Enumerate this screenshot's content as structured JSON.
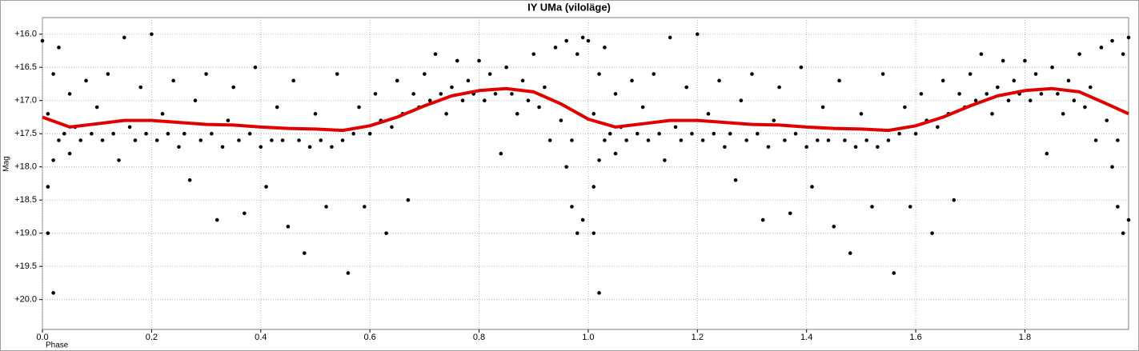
{
  "chart_data": {
    "type": "scatter",
    "title": "IY UMa (viloläge)",
    "x_label": "Phase",
    "y_label": "Mag",
    "xlim": [
      0,
      1.99
    ],
    "ylim": [
      15.75,
      20.45
    ],
    "y_inverted": true,
    "grid": true,
    "xticks": [
      {
        "value": 0,
        "label": "0.0"
      },
      0.2,
      0.4,
      0.6,
      0.8,
      {
        "value": 1,
        "label": "1.0"
      },
      1.2,
      1.4,
      1.6,
      1.8
    ],
    "yticks": [
      {
        "value": 16,
        "label": "+16.0"
      },
      {
        "value": 16.5,
        "label": "+16.5"
      },
      {
        "value": 17,
        "label": "+17.0"
      },
      {
        "value": 17.5,
        "label": "+17.5"
      },
      {
        "value": 18,
        "label": "+18.0"
      },
      {
        "value": 18.5,
        "label": "+18.5"
      },
      {
        "value": 19,
        "label": "+19.0"
      },
      {
        "value": 19.5,
        "label": "+19.5"
      },
      {
        "value": 20,
        "label": "+20.0"
      }
    ],
    "points": {
      "color": "#000000",
      "x": [
        0.0,
        0.01,
        0.01,
        0.01,
        0.02,
        0.02,
        0.02,
        0.03,
        0.03,
        0.04,
        0.05,
        0.05,
        0.06,
        0.07,
        0.08,
        0.09,
        0.1,
        0.11,
        0.12,
        0.13,
        0.14,
        0.15,
        0.16,
        0.17,
        0.18,
        0.19,
        0.2,
        0.21,
        0.22,
        0.23,
        0.24,
        0.25,
        0.26,
        0.27,
        0.28,
        0.29,
        0.3,
        0.31,
        0.32,
        0.33,
        0.34,
        0.35,
        0.36,
        0.37,
        0.38,
        0.39,
        0.4,
        0.41,
        0.42,
        0.43,
        0.44,
        0.45,
        0.46,
        0.47,
        0.48,
        0.49,
        0.5,
        0.51,
        0.52,
        0.53,
        0.54,
        0.55,
        0.56,
        0.57,
        0.58,
        0.59,
        0.6,
        0.61,
        0.62,
        0.63,
        0.64,
        0.65,
        0.66,
        0.67,
        0.68,
        0.69,
        0.7,
        0.71,
        0.72,
        0.73,
        0.74,
        0.75,
        0.76,
        0.77,
        0.78,
        0.79,
        0.8,
        0.81,
        0.82,
        0.83,
        0.84,
        0.85,
        0.86,
        0.87,
        0.88,
        0.89,
        0.9,
        0.91,
        0.92,
        0.93,
        0.94,
        0.95,
        0.96,
        0.96,
        0.97,
        0.97,
        0.98,
        0.98,
        0.99,
        0.99,
        1.0,
        1.01,
        1.01,
        1.01,
        1.02,
        1.02,
        1.02,
        1.03,
        1.03,
        1.04,
        1.05,
        1.05,
        1.06,
        1.07,
        1.08,
        1.09,
        1.1,
        1.11,
        1.12,
        1.13,
        1.14,
        1.15,
        1.16,
        1.17,
        1.18,
        1.19,
        1.2,
        1.21,
        1.22,
        1.23,
        1.24,
        1.25,
        1.26,
        1.27,
        1.28,
        1.29,
        1.3,
        1.31,
        1.32,
        1.33,
        1.34,
        1.35,
        1.36,
        1.37,
        1.38,
        1.39,
        1.4,
        1.41,
        1.42,
        1.43,
        1.44,
        1.45,
        1.46,
        1.47,
        1.48,
        1.49,
        1.5,
        1.51,
        1.52,
        1.53,
        1.54,
        1.55,
        1.56,
        1.57,
        1.58,
        1.59,
        1.6,
        1.61,
        1.62,
        1.63,
        1.64,
        1.65,
        1.66,
        1.67,
        1.68,
        1.69,
        1.7,
        1.71,
        1.72,
        1.73,
        1.74,
        1.75,
        1.76,
        1.77,
        1.78,
        1.79,
        1.8,
        1.81,
        1.82,
        1.83,
        1.84,
        1.85,
        1.86,
        1.87,
        1.88,
        1.89,
        1.9,
        1.91,
        1.92,
        1.93,
        1.94,
        1.95,
        1.96,
        1.96,
        1.97,
        1.97,
        1.98,
        1.98,
        1.99,
        1.99
      ],
      "values": [
        16.1,
        17.2,
        18.3,
        19.0,
        16.6,
        17.9,
        19.9,
        17.6,
        16.2,
        17.5,
        17.8,
        16.9,
        17.4,
        17.6,
        16.7,
        17.5,
        17.1,
        17.6,
        16.6,
        17.5,
        17.9,
        16.05,
        17.4,
        17.6,
        16.8,
        17.5,
        16.0,
        17.6,
        17.2,
        17.5,
        16.7,
        17.7,
        17.5,
        18.2,
        17.0,
        17.6,
        16.6,
        17.5,
        18.8,
        17.7,
        17.3,
        16.8,
        17.6,
        18.7,
        17.5,
        16.5,
        17.7,
        18.3,
        17.6,
        17.1,
        17.6,
        18.9,
        16.7,
        17.6,
        19.3,
        17.7,
        17.2,
        17.6,
        18.6,
        17.7,
        16.6,
        17.6,
        19.6,
        17.5,
        17.1,
        18.6,
        17.5,
        16.9,
        17.3,
        19.0,
        17.4,
        16.7,
        17.2,
        18.5,
        16.9,
        17.1,
        16.6,
        17.0,
        16.3,
        16.9,
        17.2,
        16.8,
        16.4,
        17.0,
        16.7,
        16.9,
        16.4,
        17.0,
        16.6,
        16.9,
        17.8,
        16.5,
        16.9,
        17.2,
        16.7,
        17.0,
        16.3,
        17.1,
        16.8,
        17.6,
        16.2,
        17.3,
        18.0,
        16.1,
        18.6,
        17.6,
        16.3,
        19.0,
        18.8,
        16.05,
        16.1,
        17.2,
        18.3,
        19.0,
        16.6,
        17.9,
        19.9,
        17.6,
        16.2,
        17.5,
        17.8,
        16.9,
        17.4,
        17.6,
        16.7,
        17.5,
        17.1,
        17.6,
        16.6,
        17.5,
        17.9,
        16.05,
        17.4,
        17.6,
        16.8,
        17.5,
        16.0,
        17.6,
        17.2,
        17.5,
        16.7,
        17.7,
        17.5,
        18.2,
        17.0,
        17.6,
        16.6,
        17.5,
        18.8,
        17.7,
        17.3,
        16.8,
        17.6,
        18.7,
        17.5,
        16.5,
        17.7,
        18.3,
        17.6,
        17.1,
        17.6,
        18.9,
        16.7,
        17.6,
        19.3,
        17.7,
        17.2,
        17.6,
        18.6,
        17.7,
        16.6,
        17.6,
        19.6,
        17.5,
        17.1,
        18.6,
        17.5,
        16.9,
        17.3,
        19.0,
        17.4,
        16.7,
        17.2,
        18.5,
        16.9,
        17.1,
        16.6,
        17.0,
        16.3,
        16.9,
        17.2,
        16.8,
        16.4,
        17.0,
        16.7,
        16.9,
        16.4,
        17.0,
        16.6,
        16.9,
        17.8,
        16.5,
        16.9,
        17.2,
        16.7,
        17.0,
        16.3,
        17.1,
        16.8,
        17.6,
        16.2,
        17.3,
        18.0,
        16.1,
        18.6,
        17.6,
        16.3,
        19.0,
        18.8,
        16.05
      ]
    },
    "fit": {
      "color": "#e00000",
      "x": [
        0,
        0.05,
        0.1,
        0.15,
        0.2,
        0.25,
        0.3,
        0.35,
        0.4,
        0.45,
        0.5,
        0.55,
        0.6,
        0.65,
        0.7,
        0.75,
        0.8,
        0.85,
        0.9,
        0.95,
        1.0,
        1.05,
        1.1,
        1.15,
        1.2,
        1.25,
        1.3,
        1.35,
        1.4,
        1.45,
        1.5,
        1.55,
        1.6,
        1.65,
        1.7,
        1.75,
        1.8,
        1.85,
        1.9,
        1.95,
        1.99
      ],
      "values": [
        17.25,
        17.4,
        17.35,
        17.3,
        17.3,
        17.33,
        17.36,
        17.37,
        17.4,
        17.42,
        17.43,
        17.45,
        17.38,
        17.25,
        17.08,
        16.93,
        16.85,
        16.82,
        16.87,
        17.05,
        17.28,
        17.4,
        17.35,
        17.3,
        17.3,
        17.33,
        17.36,
        17.37,
        17.4,
        17.42,
        17.43,
        17.45,
        17.38,
        17.25,
        17.08,
        16.93,
        16.85,
        16.82,
        16.87,
        17.05,
        17.2
      ]
    }
  }
}
